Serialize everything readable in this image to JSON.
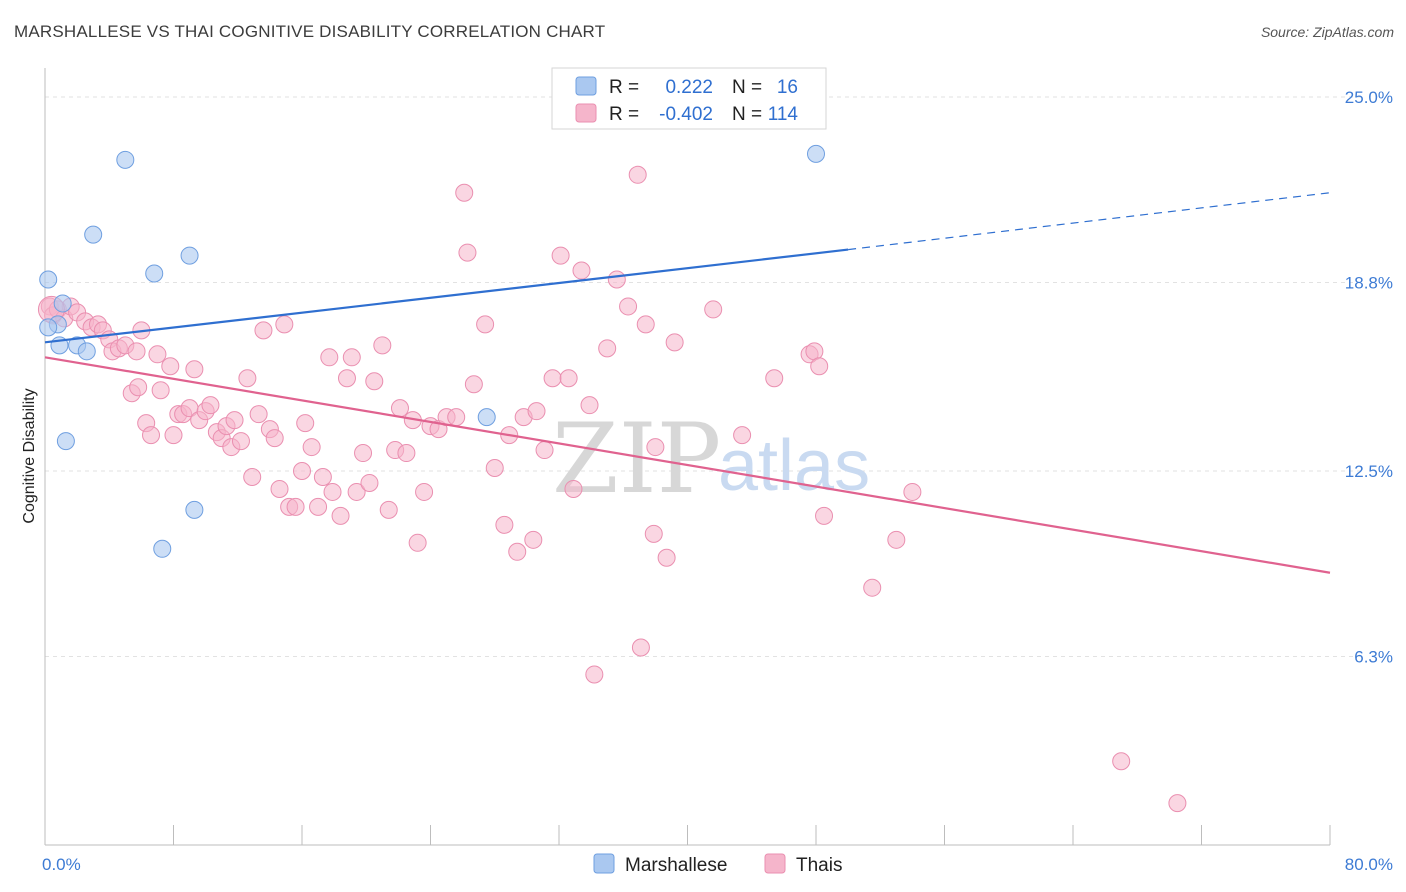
{
  "header": {
    "title": "MARSHALLESE VS THAI COGNITIVE DISABILITY CORRELATION CHART",
    "source": "Source: ZipAtlas.com"
  },
  "watermark": {
    "zip": "ZIP",
    "atlas": "atlas"
  },
  "legend": {
    "rows": [
      {
        "r_label": "R =",
        "r_value": "0.222",
        "n_label": "N =",
        "n_value": "16"
      },
      {
        "r_label": "R =",
        "r_value": "-0.402",
        "n_label": "N =",
        "n_value": "114"
      }
    ]
  },
  "bottom_legend": {
    "marshallese": "Marshallese",
    "thais": "Thais"
  },
  "chart_data": {
    "type": "scatter",
    "title": "MARSHALLESE VS THAI COGNITIVE DISABILITY CORRELATION CHART",
    "ylabel": "Cognitive Disability",
    "xlabel": "",
    "xlim": [
      0,
      80
    ],
    "ylim": [
      0,
      25
    ],
    "x_tick_labels": [
      "0.0%",
      "80.0%"
    ],
    "y_ticks": [
      6.3,
      12.5,
      18.8,
      25.0
    ],
    "y_tick_labels": [
      "6.3%",
      "12.5%",
      "18.8%",
      "25.0%"
    ],
    "grid": true,
    "legend_position": "top-center",
    "colors": {
      "marshallese_fill": "#aac8f0",
      "marshallese_stroke": "#6f9fe0",
      "marshallese_line": "#2f6fd0",
      "thais_fill": "#f5b5cb",
      "thais_stroke": "#ea8fb0",
      "thais_line": "#e0628f"
    },
    "series": [
      {
        "name": "Marshallese",
        "R": 0.222,
        "N": 16,
        "trend": {
          "x0": 0,
          "y0": 16.8,
          "x1": 50,
          "y1": 19.9,
          "dash_to_x": 80,
          "dash_to_y": 21.8
        },
        "points": [
          [
            5.0,
            22.9
          ],
          [
            3.0,
            20.4
          ],
          [
            6.8,
            19.1
          ],
          [
            9.0,
            19.7
          ],
          [
            0.2,
            18.9
          ],
          [
            1.1,
            18.1
          ],
          [
            0.8,
            17.4
          ],
          [
            0.2,
            17.3
          ],
          [
            0.9,
            16.7
          ],
          [
            2.0,
            16.7
          ],
          [
            2.6,
            16.5
          ],
          [
            1.3,
            13.5
          ],
          [
            9.3,
            11.2
          ],
          [
            7.3,
            9.9
          ],
          [
            27.5,
            14.3
          ],
          [
            48.0,
            23.1
          ]
        ]
      },
      {
        "name": "Thais",
        "R": -0.402,
        "N": 114,
        "trend": {
          "x0": 0,
          "y0": 16.3,
          "x1": 80,
          "y1": 9.1
        },
        "points": [
          [
            0.3,
            18.0
          ],
          [
            0.5,
            17.7
          ],
          [
            0.8,
            17.9
          ],
          [
            1.2,
            17.6
          ],
          [
            1.6,
            18.0
          ],
          [
            2.0,
            17.8
          ],
          [
            2.5,
            17.5
          ],
          [
            2.9,
            17.3
          ],
          [
            3.3,
            17.4
          ],
          [
            3.6,
            17.2
          ],
          [
            4.0,
            16.9
          ],
          [
            4.2,
            16.5
          ],
          [
            4.6,
            16.6
          ],
          [
            5.0,
            16.7
          ],
          [
            5.4,
            15.1
          ],
          [
            5.8,
            15.3
          ],
          [
            6.0,
            17.2
          ],
          [
            6.3,
            14.1
          ],
          [
            6.6,
            13.7
          ],
          [
            7.0,
            16.4
          ],
          [
            7.2,
            15.2
          ],
          [
            7.8,
            16.0
          ],
          [
            8.0,
            13.7
          ],
          [
            8.3,
            14.4
          ],
          [
            8.6,
            14.4
          ],
          [
            9.0,
            14.6
          ],
          [
            9.3,
            15.9
          ],
          [
            9.6,
            14.2
          ],
          [
            10.0,
            14.5
          ],
          [
            10.3,
            14.7
          ],
          [
            10.7,
            13.8
          ],
          [
            11.0,
            13.6
          ],
          [
            11.3,
            14.0
          ],
          [
            11.6,
            13.3
          ],
          [
            11.8,
            14.2
          ],
          [
            12.2,
            13.5
          ],
          [
            12.6,
            15.6
          ],
          [
            12.9,
            12.3
          ],
          [
            13.3,
            14.4
          ],
          [
            13.6,
            17.2
          ],
          [
            14.0,
            13.9
          ],
          [
            14.3,
            13.6
          ],
          [
            14.6,
            11.9
          ],
          [
            14.9,
            17.4
          ],
          [
            15.2,
            11.3
          ],
          [
            15.6,
            11.3
          ],
          [
            16.0,
            12.5
          ],
          [
            16.2,
            14.1
          ],
          [
            16.6,
            13.3
          ],
          [
            17.0,
            11.3
          ],
          [
            17.3,
            12.3
          ],
          [
            17.7,
            16.3
          ],
          [
            17.9,
            11.8
          ],
          [
            18.4,
            11.0
          ],
          [
            18.8,
            15.6
          ],
          [
            19.1,
            16.3
          ],
          [
            19.4,
            11.8
          ],
          [
            19.8,
            13.1
          ],
          [
            20.2,
            12.1
          ],
          [
            20.5,
            15.5
          ],
          [
            21.0,
            16.7
          ],
          [
            21.4,
            11.2
          ],
          [
            21.8,
            13.2
          ],
          [
            22.1,
            14.6
          ],
          [
            22.5,
            13.1
          ],
          [
            22.9,
            14.2
          ],
          [
            23.2,
            10.1
          ],
          [
            23.6,
            11.8
          ],
          [
            24.0,
            14.0
          ],
          [
            24.5,
            13.9
          ],
          [
            25.0,
            14.3
          ],
          [
            25.6,
            14.3
          ],
          [
            26.1,
            21.8
          ],
          [
            26.3,
            19.8
          ],
          [
            26.7,
            15.4
          ],
          [
            27.4,
            17.4
          ],
          [
            28.0,
            12.6
          ],
          [
            28.6,
            10.7
          ],
          [
            28.9,
            13.7
          ],
          [
            29.4,
            9.8
          ],
          [
            29.8,
            14.3
          ],
          [
            30.4,
            10.2
          ],
          [
            30.6,
            14.5
          ],
          [
            31.1,
            13.2
          ],
          [
            31.6,
            15.6
          ],
          [
            32.1,
            19.7
          ],
          [
            32.6,
            15.6
          ],
          [
            32.9,
            11.9
          ],
          [
            33.4,
            19.2
          ],
          [
            33.9,
            14.7
          ],
          [
            34.2,
            5.7
          ],
          [
            35.0,
            16.6
          ],
          [
            35.6,
            18.9
          ],
          [
            36.3,
            18.0
          ],
          [
            36.9,
            22.4
          ],
          [
            37.1,
            6.6
          ],
          [
            37.4,
            17.4
          ],
          [
            37.9,
            10.4
          ],
          [
            38.7,
            9.6
          ],
          [
            38.0,
            13.3
          ],
          [
            39.2,
            16.8
          ],
          [
            41.6,
            17.9
          ],
          [
            43.4,
            13.7
          ],
          [
            45.4,
            15.6
          ],
          [
            47.6,
            16.4
          ],
          [
            47.9,
            16.5
          ],
          [
            48.2,
            16.0
          ],
          [
            48.5,
            11.0
          ],
          [
            51.5,
            8.6
          ],
          [
            53.0,
            10.2
          ],
          [
            54.0,
            11.8
          ],
          [
            67.0,
            2.8
          ],
          [
            70.5,
            1.4
          ],
          [
            5.7,
            16.5
          ]
        ]
      }
    ]
  }
}
